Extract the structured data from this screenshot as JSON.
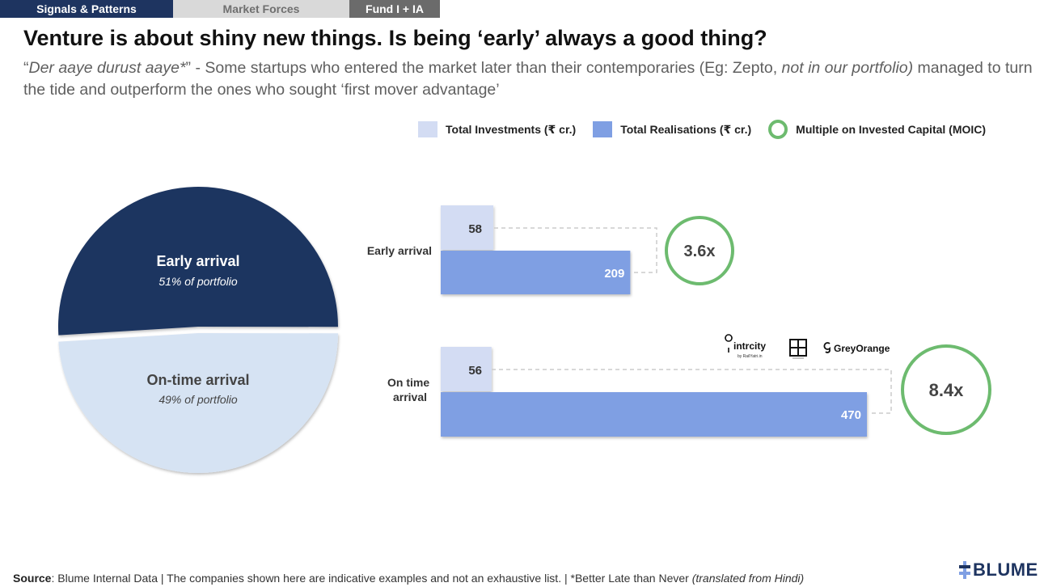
{
  "tabs": [
    {
      "label": "Signals & Patterns"
    },
    {
      "label": "Market Forces"
    },
    {
      "label": "Fund I + IA"
    }
  ],
  "title": "Venture is about shiny new things. Is being ‘early’ always a good thing?",
  "subtitle": {
    "q_open": "“",
    "quote": "Der aaye durust aaye*",
    "q_close": "” - Some startups who entered the market later than their contemporaries (Eg: Zepto, ",
    "note": "not in our portfolio)",
    "rest": " managed to turn the tide and outperform the ones who sought ‘first mover advantage’"
  },
  "legend": {
    "investments": "Total Investments (₹ cr.)",
    "realisations": "Total Realisations (₹ cr.)",
    "moic": "Multiple on Invested Capital (MOIC)"
  },
  "colors": {
    "investments": "#d3dcf3",
    "realisations": "#7f9fe3",
    "moic": "#6dbb6f",
    "pie_early": "#1e3460",
    "pie_ontime": "#d6e3f3"
  },
  "chart_data": [
    {
      "type": "pie",
      "slices": [
        {
          "label": "Early arrival",
          "sublabel": "51% of portfolio",
          "value": 51
        },
        {
          "label": "On-time arrival",
          "sublabel": "49% of portfolio",
          "value": 49
        }
      ]
    },
    {
      "type": "bar",
      "orientation": "horizontal",
      "categories": [
        "Early arrival",
        "On time arrival"
      ],
      "series": [
        {
          "name": "Total Investments (₹ cr.)",
          "values": [
            58,
            56
          ]
        },
        {
          "name": "Total Realisations (₹ cr.)",
          "values": [
            209,
            470
          ]
        }
      ],
      "moic": [
        {
          "category": "Early arrival",
          "label": "3.6x",
          "value": 3.6
        },
        {
          "category": "On time arrival",
          "label": "8.4x",
          "value": 8.4
        }
      ]
    }
  ],
  "logos": {
    "intrcity": "intrcity",
    "intrcity_sub": "by RailYatri.in",
    "greyorange": "GreyOrange"
  },
  "source": {
    "label": "Source",
    "text": ": Blume Internal Data | The companies shown here are indicative examples and not an exhaustive list. | *Better Late than Never ",
    "note": "(translated from Hindi)"
  },
  "brand": "BLUME"
}
